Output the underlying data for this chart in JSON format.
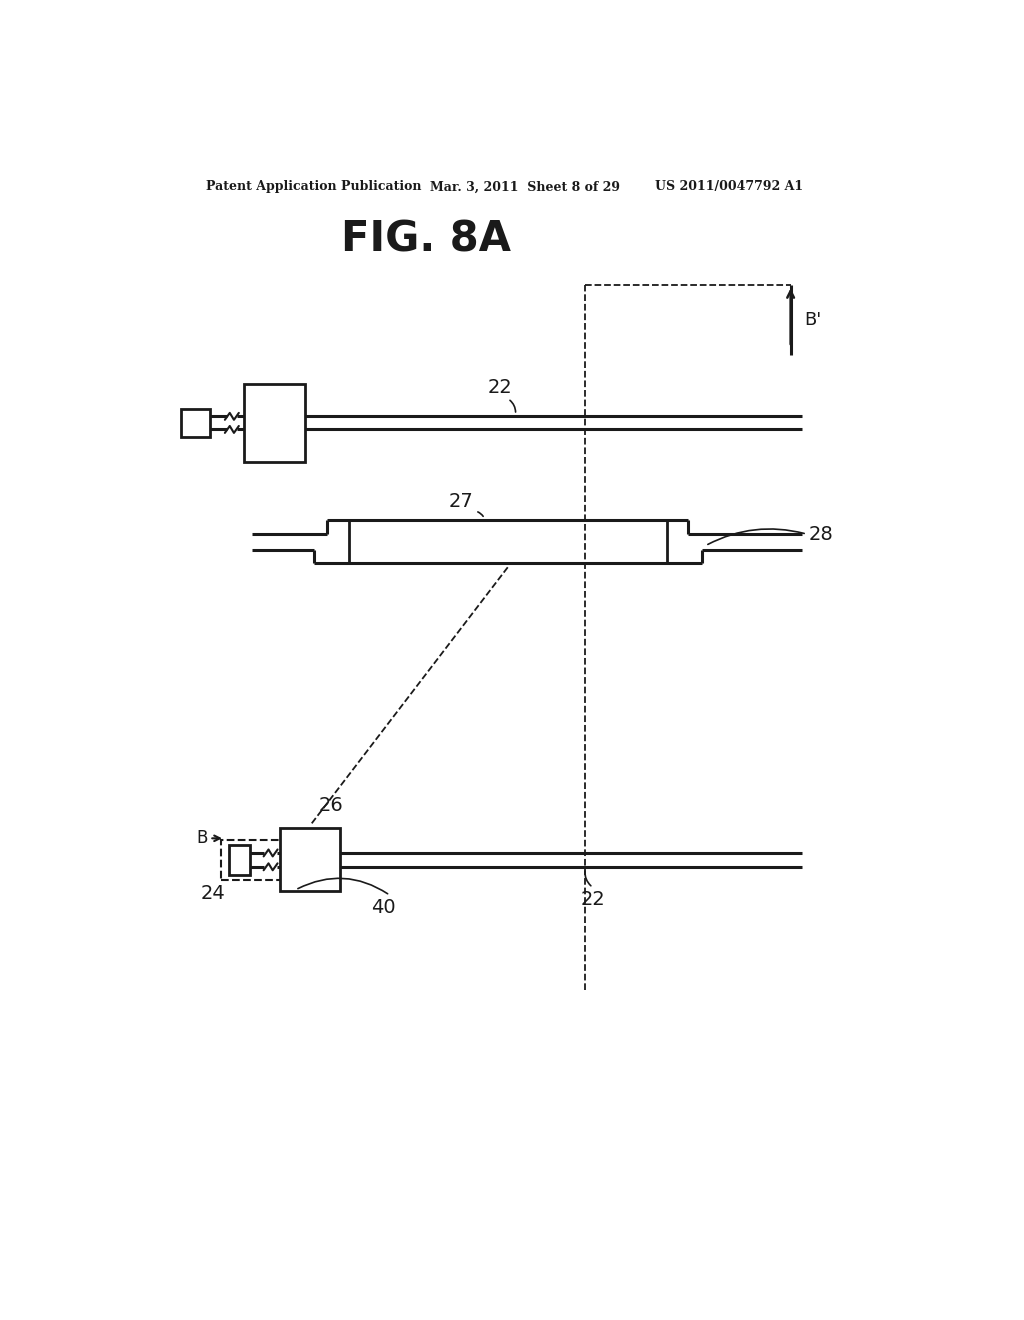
{
  "bg_color": "#ffffff",
  "line_color": "#1a1a1a",
  "header_left": "Patent Application Publication",
  "header_mid": "Mar. 3, 2011  Sheet 8 of 29",
  "header_right": "US 2011/0047792 A1",
  "fig_title": "FIG. 8A",
  "label_22_top": "22",
  "label_Bprime": "B'",
  "label_27": "27",
  "label_28": "28",
  "label_B": "B",
  "label_24": "24",
  "label_26": "26",
  "label_40": "40",
  "label_22_bot": "22"
}
